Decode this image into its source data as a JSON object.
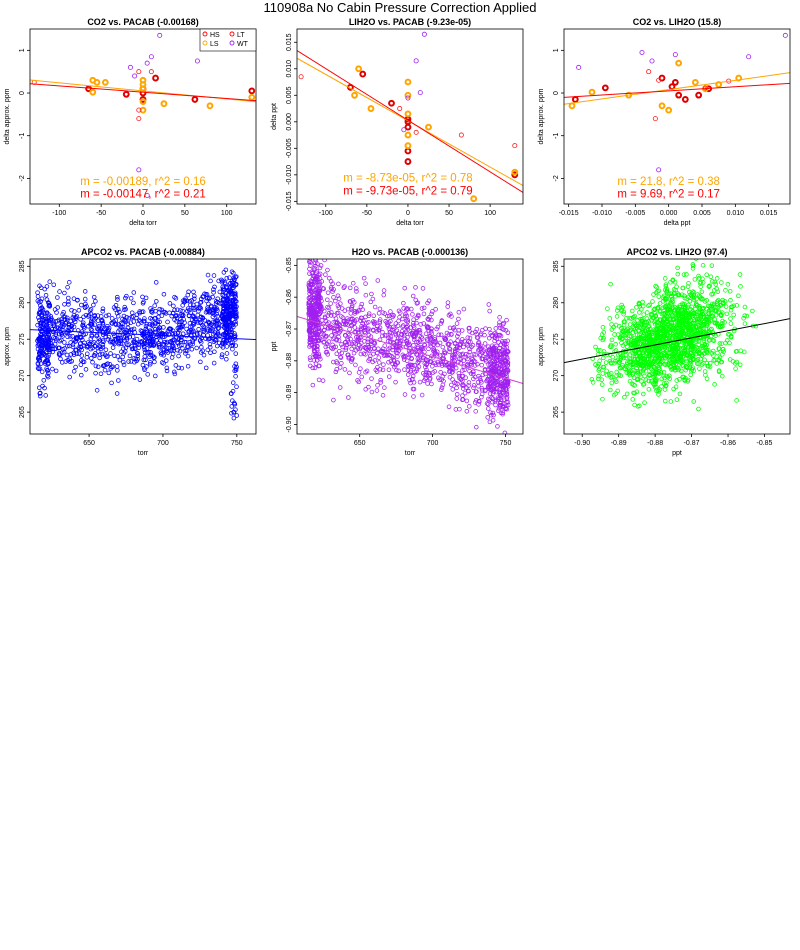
{
  "page_title": "110908a   No Cabin Pressure Correction Applied",
  "chart_data": [
    {
      "type": "scatter",
      "title": "CO2 vs. PACAB (-0.00168)",
      "xlabel": "delta torr",
      "ylabel": "delta approx. ppm",
      "xlim": [
        -135,
        135
      ],
      "ylim": [
        -2.6,
        1.5
      ],
      "xticks": [
        "-100",
        "-50",
        "0",
        "50",
        "100"
      ],
      "yticks": [
        "-2",
        "-1",
        "0",
        "1"
      ],
      "legend": {
        "position": "top-right",
        "entries": [
          {
            "label": "HS",
            "color": "#ff0000"
          },
          {
            "label": "LT",
            "color": "#ff0000"
          },
          {
            "label": "LS",
            "color": "#ffa500"
          },
          {
            "label": "WT",
            "color": "#a020f0"
          }
        ]
      },
      "series": [
        {
          "name": "HS",
          "color": "#dd0000",
          "bold": true,
          "points": [
            [
              -65,
              0.1
            ],
            [
              -20,
              -0.03
            ],
            [
              0,
              0.1
            ],
            [
              0,
              0.0
            ],
            [
              0,
              -0.15
            ],
            [
              15,
              0.35
            ],
            [
              62,
              -0.15
            ],
            [
              130,
              0.05
            ]
          ]
        },
        {
          "name": "LS",
          "color": "#ffa500",
          "bold": true,
          "points": [
            [
              -60,
              0.3
            ],
            [
              -55,
              0.25
            ],
            [
              -45,
              0.25
            ],
            [
              -60,
              0.02
            ],
            [
              0,
              0.3
            ],
            [
              0,
              0.2
            ],
            [
              0,
              0.1
            ],
            [
              0,
              -0.2
            ],
            [
              0,
              -0.4
            ],
            [
              25,
              -0.25
            ],
            [
              80,
              -0.3
            ],
            [
              130,
              -0.1
            ]
          ]
        },
        {
          "name": "LT",
          "color": "#ff2020",
          "bold": false,
          "points": [
            [
              -130,
              0.25
            ],
            [
              -5,
              0.5
            ],
            [
              -5,
              -0.4
            ],
            [
              -5,
              -0.6
            ],
            [
              10,
              0.5
            ]
          ]
        },
        {
          "name": "WT",
          "color": "#a020f0",
          "bold": false,
          "points": [
            [
              -10,
              0.4
            ],
            [
              5,
              0.7
            ],
            [
              10,
              0.85
            ],
            [
              -15,
              0.6
            ],
            [
              20,
              1.35
            ],
            [
              65,
              0.75
            ],
            [
              -5,
              -1.8
            ],
            [
              5,
              -2.4
            ]
          ]
        }
      ],
      "fits": [
        {
          "color": "#ffa500",
          "slope": -0.00189,
          "intercept": 0.05
        },
        {
          "color": "#ff0000",
          "slope": -0.00147,
          "intercept": 0.02
        }
      ],
      "annotations": [
        {
          "text": "m = -0.00189, r^2 = 0.16",
          "color": "#ffa500",
          "x": 0,
          "y": -2.15
        },
        {
          "text": "m = -0.00147, r^2 = 0.21",
          "color": "#ff0000",
          "x": 0,
          "y": -2.45
        }
      ]
    },
    {
      "type": "scatter",
      "title": "LIH2O vs. PACAB (-9.23e-05)",
      "xlabel": "delta torr",
      "ylabel": "delta ppt",
      "xlim": [
        -135,
        140
      ],
      "ylim": [
        -0.0155,
        0.0175
      ],
      "xticks": [
        "-100",
        "-50",
        "0",
        "50",
        "100"
      ],
      "yticks": [
        "-0.015",
        "-0.010",
        "-0.005",
        "0.000",
        "0.005",
        "0.010",
        "0.015"
      ],
      "series": [
        {
          "name": "HS",
          "color": "#dd0000",
          "bold": true,
          "points": [
            [
              -70,
              0.0065
            ],
            [
              -55,
              0.009
            ],
            [
              -20,
              0.0035
            ],
            [
              0,
              0.0005
            ],
            [
              0,
              0.0
            ],
            [
              0,
              -0.001
            ],
            [
              0,
              -0.0055
            ],
            [
              0,
              -0.0075
            ],
            [
              130,
              -0.01
            ]
          ]
        },
        {
          "name": "LS",
          "color": "#ffa500",
          "bold": true,
          "points": [
            [
              -60,
              0.01
            ],
            [
              -65,
              0.005
            ],
            [
              -45,
              0.0025
            ],
            [
              0,
              0.0075
            ],
            [
              0,
              0.005
            ],
            [
              0,
              0.0015
            ],
            [
              0,
              -0.0025
            ],
            [
              0,
              -0.0045
            ],
            [
              25,
              -0.001
            ],
            [
              80,
              -0.0145
            ],
            [
              130,
              -0.0095
            ]
          ]
        },
        {
          "name": "LT",
          "color": "#ff2020",
          "bold": false,
          "points": [
            [
              -130,
              0.0085
            ],
            [
              -10,
              0.0025
            ],
            [
              10,
              -0.002
            ],
            [
              65,
              -0.0025
            ],
            [
              130,
              -0.0045
            ]
          ]
        },
        {
          "name": "WT",
          "color": "#a020f0",
          "bold": false,
          "points": [
            [
              -5,
              -0.0015
            ],
            [
              0,
              0.0045
            ],
            [
              15,
              0.0055
            ],
            [
              10,
              0.0115
            ],
            [
              20,
              0.0165
            ]
          ]
        }
      ],
      "fits": [
        {
          "color": "#ffa500",
          "slope": -8.73e-05,
          "intercept": 0.0002
        },
        {
          "color": "#ff0000",
          "slope": -9.73e-05,
          "intercept": 0.0003
        }
      ],
      "annotations": [
        {
          "text": "m = -8.73e-05, r^2 = 0.78",
          "color": "#ffa500",
          "x": 0,
          "y": -0.0113
        },
        {
          "text": "m = -9.73e-05, r^2 = 0.79",
          "color": "#ff0000",
          "x": 0,
          "y": -0.0137
        }
      ]
    },
    {
      "type": "scatter",
      "title": "CO2 vs. LIH2O (15.8)",
      "xlabel": "delta ppt",
      "ylabel": "delta approx. ppm",
      "xlim": [
        -0.0157,
        0.0182
      ],
      "ylim": [
        -2.6,
        1.5
      ],
      "xticks": [
        "-0.015",
        "-0.010",
        "-0.005",
        "0.000",
        "0.005",
        "0.010",
        "0.015"
      ],
      "yticks": [
        "-2",
        "-1",
        "0",
        "1"
      ],
      "series": [
        {
          "name": "HS",
          "color": "#dd0000",
          "bold": true,
          "points": [
            [
              -0.014,
              -0.15
            ],
            [
              -0.0095,
              0.12
            ],
            [
              -0.001,
              0.35
            ],
            [
              0.0005,
              0.15
            ],
            [
              0.001,
              0.25
            ],
            [
              0.0015,
              -0.05
            ],
            [
              0.0025,
              -0.15
            ],
            [
              0.0045,
              -0.05
            ],
            [
              0.006,
              0.1
            ]
          ]
        },
        {
          "name": "LS",
          "color": "#ffa500",
          "bold": true,
          "points": [
            [
              -0.0145,
              -0.3
            ],
            [
              -0.0115,
              0.02
            ],
            [
              -0.006,
              -0.05
            ],
            [
              -0.001,
              -0.3
            ],
            [
              0.0,
              -0.4
            ],
            [
              0.0015,
              0.7
            ],
            [
              0.004,
              0.25
            ],
            [
              0.0055,
              0.1
            ],
            [
              0.0075,
              0.2
            ],
            [
              0.0105,
              0.35
            ]
          ]
        },
        {
          "name": "LT",
          "color": "#ff2020",
          "bold": false,
          "points": [
            [
              -0.003,
              0.5
            ],
            [
              -0.002,
              -0.6
            ],
            [
              -0.0015,
              0.3
            ],
            [
              0.0055,
              0.12
            ],
            [
              0.009,
              0.28
            ]
          ]
        },
        {
          "name": "WT",
          "color": "#a020f0",
          "bold": false,
          "points": [
            [
              -0.0135,
              0.6
            ],
            [
              -0.004,
              0.95
            ],
            [
              -0.0025,
              0.75
            ],
            [
              -0.0015,
              -1.8
            ],
            [
              0.001,
              0.9
            ],
            [
              0.012,
              0.85
            ],
            [
              0.0175,
              1.35
            ]
          ]
        }
      ],
      "fits": [
        {
          "color": "#ffa500",
          "slope": 21.8,
          "intercept": 0.08
        },
        {
          "color": "#ff0000",
          "slope": 9.69,
          "intercept": 0.05
        }
      ],
      "annotations": [
        {
          "text": "m = 21.8, r^2 = 0.38",
          "color": "#ffa500",
          "x": 0,
          "y": -2.15
        },
        {
          "text": "m = 9.69, r^2 = 0.17",
          "color": "#ff0000",
          "x": 0,
          "y": -2.45
        }
      ]
    },
    {
      "type": "scatter",
      "title": "APCO2 vs. PACAB (-0.00884)",
      "xlabel": "torr",
      "ylabel": "approx. ppm",
      "xlim": [
        610,
        763
      ],
      "ylim": [
        262,
        286
      ],
      "xticks": [
        "650",
        "700",
        "750"
      ],
      "yticks": [
        "265",
        "270",
        "275",
        "280",
        "285"
      ],
      "series": [
        {
          "name": "",
          "color": "#0000ff",
          "density": {
            "xmin": 615,
            "xmax": 750,
            "ycenter": 275.5,
            "spread": 3.5,
            "upliftStart": 700,
            "uplift": 3.0,
            "count": 1400
          }
        }
      ],
      "fits": [
        {
          "color": "#0000ff",
          "slope": -0.00884,
          "intercept": 281.7
        }
      ]
    },
    {
      "type": "scatter",
      "title": "H2O vs. PACAB (-0.000136)",
      "xlabel": "torr",
      "ylabel": "ppt",
      "xlim": [
        607,
        762
      ],
      "ylim": [
        -0.903,
        -0.848
      ],
      "xticks": [
        "650",
        "700",
        "750"
      ],
      "yticks": [
        "-0.90",
        "-0.89",
        "-0.88",
        "-0.87",
        "-0.86",
        "-0.85"
      ],
      "series": [
        {
          "name": "",
          "color": "#a020f0",
          "density": {
            "xmin": 615,
            "xmax": 752,
            "ycenter0": -0.866,
            "slope": -0.000136,
            "spread": 0.009,
            "count": 1600
          }
        }
      ],
      "fits": [
        {
          "color": "#d040d0",
          "slope": -0.000136,
          "intercept": -0.7835
        }
      ]
    },
    {
      "type": "scatter",
      "title": "APCO2 vs. LIH2O (97.4)",
      "xlabel": "ppt",
      "ylabel": "approx. ppm",
      "xlim": [
        -0.905,
        -0.843
      ],
      "ylim": [
        262,
        286
      ],
      "xticks": [
        "-0.90",
        "-0.89",
        "-0.88",
        "-0.87",
        "-0.86",
        "-0.85"
      ],
      "yticks": [
        "265",
        "270",
        "275",
        "280",
        "285"
      ],
      "series": [
        {
          "name": "",
          "color": "#00ff00",
          "density": {
            "xmin": -0.898,
            "xmax": -0.852,
            "slope": 97.4,
            "ycenter0": 274.7,
            "xref": -0.875,
            "spread": 3.0,
            "count": 1600
          }
        }
      ],
      "fits": [
        {
          "color": "#000000",
          "slope": 97.4,
          "intercept": 359.93
        }
      ]
    }
  ]
}
